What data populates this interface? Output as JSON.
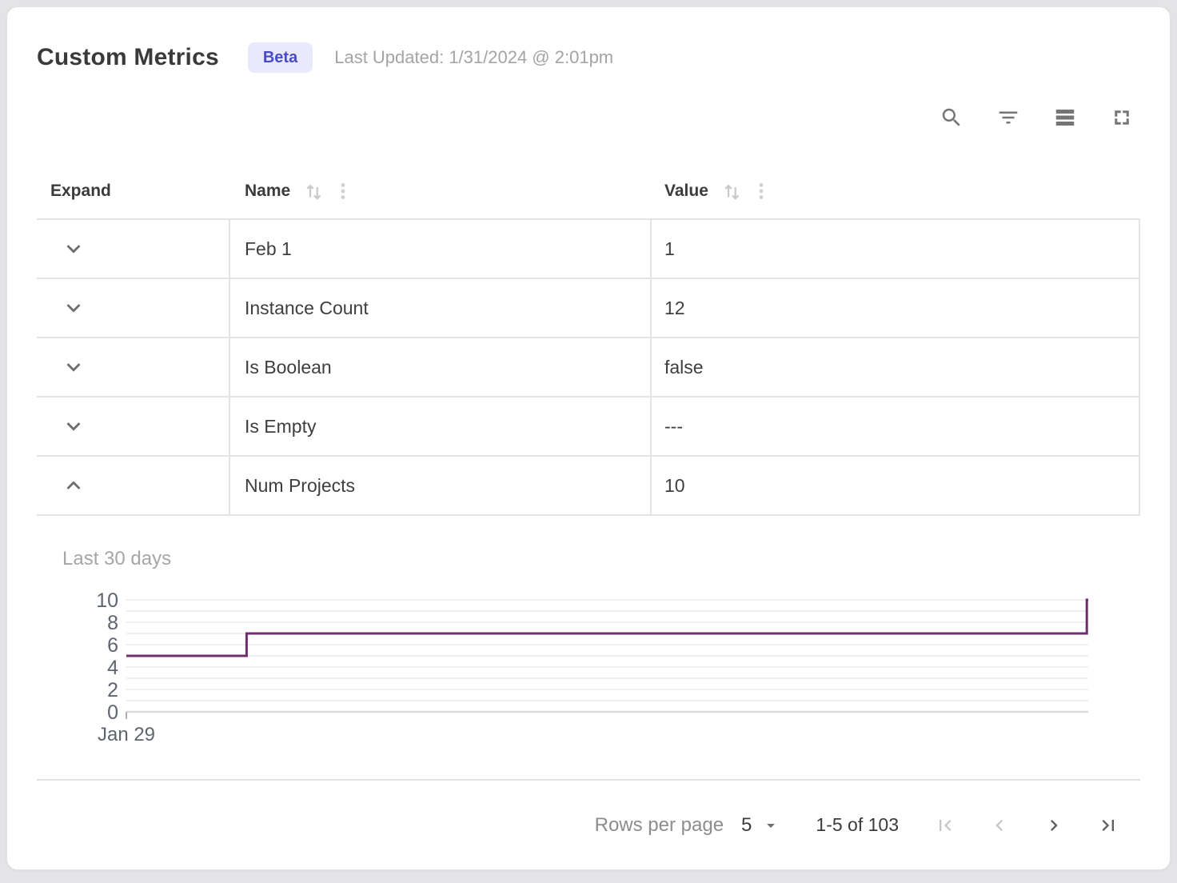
{
  "header": {
    "title": "Custom Metrics",
    "badge": "Beta",
    "last_updated": "Last Updated: 1/31/2024 @ 2:01pm"
  },
  "toolbar": {
    "icons": [
      "search",
      "filter",
      "density",
      "fullscreen"
    ]
  },
  "table": {
    "columns": [
      {
        "label": "Expand",
        "sortable": false
      },
      {
        "label": "Name",
        "sortable": true
      },
      {
        "label": "Value",
        "sortable": true
      }
    ],
    "rows": [
      {
        "name": "Feb 1",
        "value": "1",
        "expanded": false
      },
      {
        "name": "Instance Count",
        "value": "12",
        "expanded": false
      },
      {
        "name": "Is Boolean",
        "value": "false",
        "expanded": false
      },
      {
        "name": "Is Empty",
        "value": "---",
        "expanded": false
      },
      {
        "name": "Num Projects",
        "value": "10",
        "expanded": true
      }
    ]
  },
  "chart_data": {
    "type": "line",
    "subtype": "step",
    "title": "Last 30 days",
    "series": [
      {
        "name": "Num Projects",
        "points": [
          {
            "x": 0,
            "y": 5
          },
          {
            "x": 0.125,
            "y": 5
          },
          {
            "x": 0.125,
            "y": 7
          },
          {
            "x": 0.9985,
            "y": 7
          },
          {
            "x": 0.9985,
            "y": 10
          },
          {
            "x": 1,
            "y": 10
          }
        ]
      }
    ],
    "x_ticks": [
      {
        "pos": 0,
        "label": "Jan 29"
      }
    ],
    "y_ticks": [
      0,
      2,
      4,
      6,
      8,
      10
    ],
    "ylim": [
      0,
      10
    ],
    "grid": "horizontal gridlines every 1 unit",
    "legend": "none",
    "line_color": "#702d6e",
    "grid_color": "#ececec",
    "axis_line_color": "#dcdcdc",
    "axis_label_color": "#5f646e"
  },
  "pagination": {
    "rows_per_page_label": "Rows per page",
    "rows_per_page_value": "5",
    "range_label": "1-5 of 103",
    "buttons": [
      {
        "name": "first-page",
        "enabled": false
      },
      {
        "name": "previous-page",
        "enabled": false
      },
      {
        "name": "next-page",
        "enabled": true
      },
      {
        "name": "last-page",
        "enabled": true
      }
    ]
  },
  "colors": {
    "accent_badge_bg": "#e9e9fb",
    "accent_badge_text": "#484bc5",
    "chart_line": "#702d6e",
    "table_border": "#e4e4e4",
    "muted_text": "#a4a4a4"
  }
}
